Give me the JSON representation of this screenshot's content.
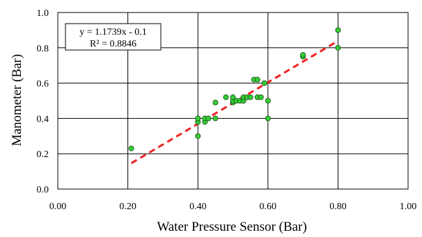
{
  "chart_data": {
    "type": "scatter",
    "xlabel": "Water Pressure Sensor (Bar)",
    "ylabel": "Manometer (Bar)",
    "xlim": [
      0.0,
      1.0
    ],
    "ylim": [
      0.0,
      1.0
    ],
    "x_ticks": [
      0.0,
      0.2,
      0.4,
      0.6,
      0.8,
      1.0
    ],
    "y_ticks": [
      0.0,
      0.2,
      0.4,
      0.6,
      0.8,
      1.0
    ],
    "x_tick_labels": [
      "0.00",
      "0.20",
      "0.40",
      "0.60",
      "0.80",
      "1.00"
    ],
    "y_tick_labels": [
      "0.0",
      "0.2",
      "0.4",
      "0.6",
      "0.8",
      "1.0"
    ],
    "grid": true,
    "series": [
      {
        "marker_color": "#33cc33",
        "points": [
          [
            0.21,
            0.23
          ],
          [
            0.4,
            0.3
          ],
          [
            0.4,
            0.38
          ],
          [
            0.4,
            0.4
          ],
          [
            0.42,
            0.38
          ],
          [
            0.42,
            0.4
          ],
          [
            0.43,
            0.4
          ],
          [
            0.45,
            0.4
          ],
          [
            0.45,
            0.49
          ],
          [
            0.48,
            0.52
          ],
          [
            0.5,
            0.49
          ],
          [
            0.5,
            0.5
          ],
          [
            0.5,
            0.52
          ],
          [
            0.51,
            0.5
          ],
          [
            0.52,
            0.5
          ],
          [
            0.53,
            0.5
          ],
          [
            0.53,
            0.52
          ],
          [
            0.54,
            0.52
          ],
          [
            0.55,
            0.52
          ],
          [
            0.56,
            0.62
          ],
          [
            0.57,
            0.62
          ],
          [
            0.57,
            0.52
          ],
          [
            0.58,
            0.52
          ],
          [
            0.59,
            0.6
          ],
          [
            0.6,
            0.5
          ],
          [
            0.6,
            0.4
          ],
          [
            0.7,
            0.75
          ],
          [
            0.7,
            0.76
          ],
          [
            0.8,
            0.9
          ],
          [
            0.8,
            0.8
          ]
        ]
      }
    ],
    "trendline": {
      "type": "linear",
      "slope": 1.1739,
      "intercept": -0.1,
      "x_range": [
        0.21,
        0.8
      ],
      "color": "#ee2222",
      "style": "dashed",
      "equation_label": "y = 1.1739x - 0.1",
      "r2_label": "R² = 0.8846"
    },
    "annotation_position": "top-left"
  }
}
